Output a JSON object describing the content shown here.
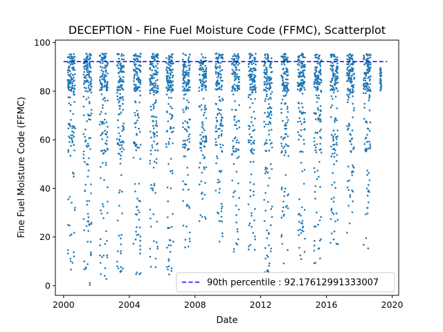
{
  "chart_data": {
    "type": "scatter",
    "title": "DECEPTION - Fine Fuel Moisture Code (FFMC), Scatterplot",
    "xlabel": "Date",
    "ylabel": "Fine Fuel Moisture Code (FFMC)",
    "xlim": [
      1999.5,
      2020.4
    ],
    "ylim": [
      -4,
      101
    ],
    "x_ticks": [
      2000,
      2004,
      2008,
      2012,
      2016,
      2020
    ],
    "y_ticks": [
      0,
      20,
      40,
      60,
      80,
      100
    ],
    "grid": false,
    "legend": {
      "placement": "lower-right",
      "label": "90th percentile : 92.17612991333007"
    },
    "point_color": "#1f77b4",
    "reference_line": {
      "value": 92.17612991333007,
      "color": "#0000ff",
      "style": "dashed",
      "x_range": [
        2000,
        2019.7
      ]
    },
    "seasons": [
      {
        "start": 2000.25,
        "end": 2000.7,
        "min": 2
      },
      {
        "start": 2001.2,
        "end": 2001.7,
        "min": 0
      },
      {
        "start": 2002.2,
        "end": 2002.7,
        "min": 1
      },
      {
        "start": 2003.25,
        "end": 2003.7,
        "min": 5
      },
      {
        "start": 2004.25,
        "end": 2004.7,
        "min": 1
      },
      {
        "start": 2005.25,
        "end": 2005.75,
        "min": 4
      },
      {
        "start": 2006.25,
        "end": 2006.7,
        "min": 2
      },
      {
        "start": 2007.25,
        "end": 2007.7,
        "min": 15
      },
      {
        "start": 2008.25,
        "end": 2008.7,
        "min": 20
      },
      {
        "start": 2009.25,
        "end": 2009.7,
        "min": 18
      },
      {
        "start": 2010.25,
        "end": 2010.7,
        "min": 14
      },
      {
        "start": 2011.25,
        "end": 2011.7,
        "min": 14
      },
      {
        "start": 2012.2,
        "end": 2012.7,
        "min": 5
      },
      {
        "start": 2013.25,
        "end": 2013.7,
        "min": 9
      },
      {
        "start": 2014.25,
        "end": 2014.7,
        "min": 7
      },
      {
        "start": 2015.25,
        "end": 2015.7,
        "min": 9
      },
      {
        "start": 2016.25,
        "end": 2016.7,
        "min": 17
      },
      {
        "start": 2017.25,
        "end": 2017.7,
        "min": 20
      },
      {
        "start": 2018.25,
        "end": 2018.7,
        "min": 14
      },
      {
        "start": 2019.25,
        "end": 2019.35,
        "min": 80
      }
    ]
  }
}
